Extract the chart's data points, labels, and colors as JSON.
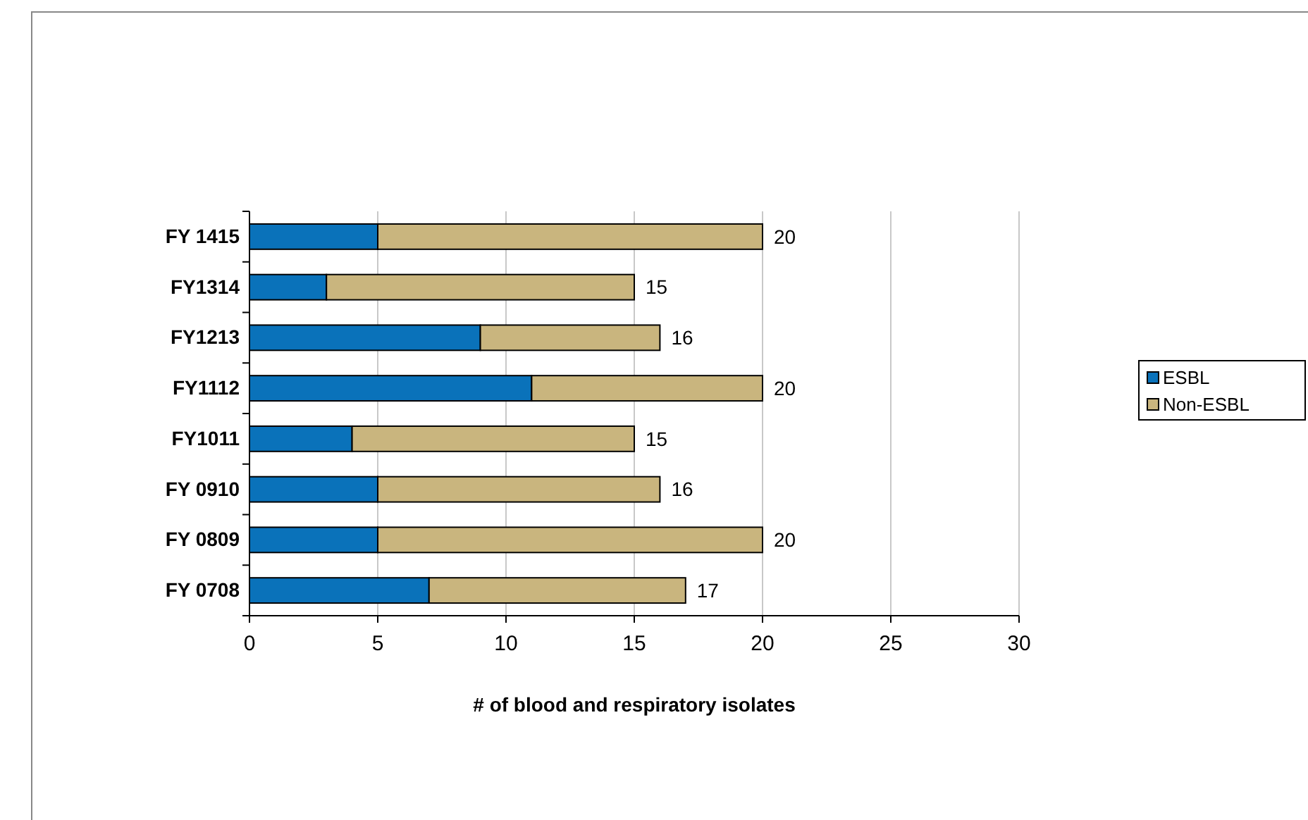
{
  "chart_data": {
    "type": "bar",
    "orientation": "horizontal",
    "stacked": true,
    "categories": [
      "FY 1415",
      "FY1314",
      "FY1213",
      "FY1112",
      "FY1011",
      "FY 0910",
      "FY 0809",
      "FY 0708"
    ],
    "series": [
      {
        "name": "ESBL",
        "color": "#0a72ba",
        "values": [
          5,
          3,
          9,
          11,
          4,
          5,
          5,
          7
        ]
      },
      {
        "name": "Non-ESBL",
        "color": "#c9b57e",
        "values": [
          15,
          12,
          7,
          9,
          11,
          11,
          15,
          10
        ]
      }
    ],
    "totals": [
      "20",
      "15",
      "16",
      "20",
      "15",
      "16",
      "20",
      "17"
    ],
    "xlim": [
      0,
      30
    ],
    "xticks": [
      0,
      5,
      10,
      15,
      20,
      25,
      30
    ],
    "grid": "x",
    "legend": "right",
    "xlabel": "# of blood and respiratory isolates"
  }
}
